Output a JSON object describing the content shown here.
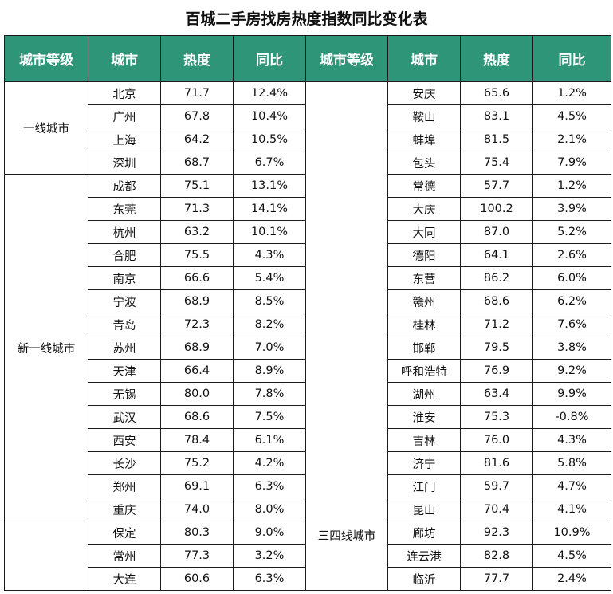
{
  "title": "百城二手房找房热度指数同比变化表",
  "header_color": "#2f9579",
  "columns": [
    "城市等级",
    "城市",
    "热度",
    "同比",
    "城市等级",
    "城市",
    "热度",
    "同比"
  ],
  "left_groups": [
    {
      "tier": "一线城市",
      "rows": [
        {
          "city": "北京",
          "heat": "71.7",
          "yoy": "12.4%"
        },
        {
          "city": "广州",
          "heat": "67.8",
          "yoy": "10.4%"
        },
        {
          "city": "上海",
          "heat": "64.2",
          "yoy": "10.5%"
        },
        {
          "city": "深圳",
          "heat": "68.7",
          "yoy": "6.7%"
        }
      ]
    },
    {
      "tier": "新一线城市",
      "rows": [
        {
          "city": "成都",
          "heat": "75.1",
          "yoy": "13.1%"
        },
        {
          "city": "东莞",
          "heat": "71.3",
          "yoy": "14.1%"
        },
        {
          "city": "杭州",
          "heat": "63.2",
          "yoy": "10.1%"
        },
        {
          "city": "合肥",
          "heat": "75.5",
          "yoy": "4.3%"
        },
        {
          "city": "南京",
          "heat": "66.6",
          "yoy": "5.4%"
        },
        {
          "city": "宁波",
          "heat": "68.9",
          "yoy": "8.5%"
        },
        {
          "city": "青岛",
          "heat": "72.3",
          "yoy": "8.2%"
        },
        {
          "city": "苏州",
          "heat": "68.9",
          "yoy": "7.0%"
        },
        {
          "city": "天津",
          "heat": "66.4",
          "yoy": "8.9%"
        },
        {
          "city": "无锡",
          "heat": "80.0",
          "yoy": "7.8%"
        },
        {
          "city": "武汉",
          "heat": "68.6",
          "yoy": "7.5%"
        },
        {
          "city": "西安",
          "heat": "78.4",
          "yoy": "6.1%"
        },
        {
          "city": "长沙",
          "heat": "75.2",
          "yoy": "4.2%"
        },
        {
          "city": "郑州",
          "heat": "69.1",
          "yoy": "6.3%"
        },
        {
          "city": "重庆",
          "heat": "74.0",
          "yoy": "8.0%"
        }
      ]
    },
    {
      "tier": "",
      "rows": [
        {
          "city": "保定",
          "heat": "80.3",
          "yoy": "9.0%"
        },
        {
          "city": "常州",
          "heat": "77.3",
          "yoy": "3.2%"
        },
        {
          "city": "大连",
          "heat": "60.6",
          "yoy": "6.3%"
        }
      ]
    }
  ],
  "right_groups": [
    {
      "tier": "三四线城市",
      "rows": [
        {
          "city": "安庆",
          "heat": "65.6",
          "yoy": "1.2%"
        },
        {
          "city": "鞍山",
          "heat": "83.1",
          "yoy": "4.5%"
        },
        {
          "city": "蚌埠",
          "heat": "81.5",
          "yoy": "2.1%"
        },
        {
          "city": "包头",
          "heat": "75.4",
          "yoy": "7.9%"
        },
        {
          "city": "常德",
          "heat": "57.7",
          "yoy": "1.2%"
        },
        {
          "city": "大庆",
          "heat": "100.2",
          "yoy": "3.9%"
        },
        {
          "city": "大同",
          "heat": "87.0",
          "yoy": "5.2%"
        },
        {
          "city": "德阳",
          "heat": "64.1",
          "yoy": "2.6%"
        },
        {
          "city": "东营",
          "heat": "86.2",
          "yoy": "6.0%"
        },
        {
          "city": "赣州",
          "heat": "68.6",
          "yoy": "6.2%"
        },
        {
          "city": "桂林",
          "heat": "71.2",
          "yoy": "7.6%"
        },
        {
          "city": "邯郸",
          "heat": "79.5",
          "yoy": "3.8%"
        },
        {
          "city": "呼和浩特",
          "heat": "76.9",
          "yoy": "9.2%"
        },
        {
          "city": "湖州",
          "heat": "63.4",
          "yoy": "9.9%"
        },
        {
          "city": "淮安",
          "heat": "75.3",
          "yoy": "-0.8%"
        },
        {
          "city": "吉林",
          "heat": "76.0",
          "yoy": "4.3%"
        },
        {
          "city": "济宁",
          "heat": "81.6",
          "yoy": "5.8%"
        },
        {
          "city": "江门",
          "heat": "59.7",
          "yoy": "4.7%"
        },
        {
          "city": "昆山",
          "heat": "70.4",
          "yoy": "4.1%"
        },
        {
          "city": "廊坊",
          "heat": "92.3",
          "yoy": "10.9%"
        },
        {
          "city": "连云港",
          "heat": "82.8",
          "yoy": "4.5%"
        },
        {
          "city": "临沂",
          "heat": "77.7",
          "yoy": "2.4%"
        }
      ]
    }
  ]
}
